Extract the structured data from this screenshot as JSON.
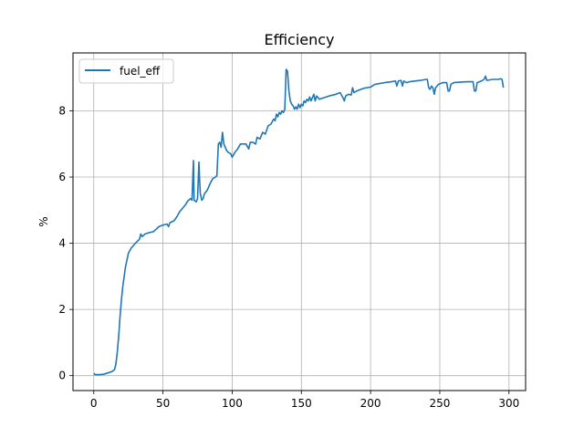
{
  "chart_data": {
    "type": "line",
    "title": "Efficiency",
    "xlabel": "",
    "ylabel": "%",
    "xlim": [
      -15,
      312
    ],
    "ylim": [
      -0.45,
      9.75
    ],
    "xticks": [
      0,
      50,
      100,
      150,
      200,
      250,
      300
    ],
    "yticks": [
      0,
      2,
      4,
      6,
      8
    ],
    "grid": true,
    "legend_position": "upper-left",
    "series": [
      {
        "name": "fuel_eff",
        "color": "#1f77b4",
        "points": [
          [
            0,
            0.07
          ],
          [
            1,
            0.03
          ],
          [
            4,
            0.03
          ],
          [
            7,
            0.04
          ],
          [
            10,
            0.08
          ],
          [
            13,
            0.12
          ],
          [
            15,
            0.18
          ],
          [
            16,
            0.35
          ],
          [
            17,
            0.7
          ],
          [
            18,
            1.2
          ],
          [
            19,
            1.8
          ],
          [
            20,
            2.3
          ],
          [
            21,
            2.7
          ],
          [
            22,
            3.0
          ],
          [
            23,
            3.3
          ],
          [
            24,
            3.5
          ],
          [
            25,
            3.7
          ],
          [
            27,
            3.85
          ],
          [
            30,
            4.0
          ],
          [
            33,
            4.12
          ],
          [
            34,
            4.28
          ],
          [
            35,
            4.2
          ],
          [
            37,
            4.28
          ],
          [
            40,
            4.32
          ],
          [
            43,
            4.35
          ],
          [
            45,
            4.42
          ],
          [
            47,
            4.5
          ],
          [
            50,
            4.55
          ],
          [
            53,
            4.58
          ],
          [
            54,
            4.5
          ],
          [
            55,
            4.62
          ],
          [
            58,
            4.68
          ],
          [
            60,
            4.8
          ],
          [
            62,
            4.95
          ],
          [
            64,
            5.05
          ],
          [
            66,
            5.15
          ],
          [
            68,
            5.28
          ],
          [
            70,
            5.35
          ],
          [
            71,
            5.3
          ],
          [
            72,
            6.5
          ],
          [
            72.5,
            5.3
          ],
          [
            74,
            5.25
          ],
          [
            75,
            5.35
          ],
          [
            76,
            6.45
          ],
          [
            76.5,
            5.9
          ],
          [
            77,
            5.5
          ],
          [
            78,
            5.3
          ],
          [
            79,
            5.35
          ],
          [
            80,
            5.5
          ],
          [
            82,
            5.6
          ],
          [
            84,
            5.8
          ],
          [
            86,
            5.95
          ],
          [
            88,
            6.0
          ],
          [
            89,
            6.05
          ],
          [
            90,
            7.0
          ],
          [
            91,
            7.05
          ],
          [
            92,
            6.9
          ],
          [
            93,
            7.35
          ],
          [
            94,
            7.0
          ],
          [
            96,
            6.8
          ],
          [
            97,
            6.75
          ],
          [
            99,
            6.7
          ],
          [
            100,
            6.6
          ],
          [
            102,
            6.75
          ],
          [
            104,
            6.85
          ],
          [
            106,
            7.0
          ],
          [
            110,
            7.0
          ],
          [
            112,
            6.85
          ],
          [
            113,
            7.05
          ],
          [
            115,
            7.05
          ],
          [
            117,
            7.0
          ],
          [
            118,
            7.2
          ],
          [
            120,
            7.15
          ],
          [
            122,
            7.35
          ],
          [
            124,
            7.3
          ],
          [
            126,
            7.55
          ],
          [
            128,
            7.6
          ],
          [
            130,
            7.75
          ],
          [
            131,
            7.7
          ],
          [
            132,
            7.9
          ],
          [
            133,
            7.82
          ],
          [
            134,
            7.95
          ],
          [
            135,
            7.9
          ],
          [
            136,
            8.0
          ],
          [
            137,
            7.95
          ],
          [
            138,
            8.05
          ],
          [
            139,
            9.25
          ],
          [
            140,
            9.2
          ],
          [
            141,
            8.6
          ],
          [
            142,
            8.3
          ],
          [
            143,
            8.2
          ],
          [
            144,
            8.15
          ],
          [
            145,
            8.05
          ],
          [
            146,
            8.12
          ],
          [
            147,
            8.05
          ],
          [
            148,
            8.2
          ],
          [
            149,
            8.1
          ],
          [
            150,
            8.2
          ],
          [
            151,
            8.15
          ],
          [
            152,
            8.3
          ],
          [
            153,
            8.25
          ],
          [
            154,
            8.35
          ],
          [
            155,
            8.3
          ],
          [
            156,
            8.42
          ],
          [
            157,
            8.3
          ],
          [
            158,
            8.4
          ],
          [
            159,
            8.5
          ],
          [
            160,
            8.3
          ],
          [
            161,
            8.45
          ],
          [
            163,
            8.35
          ],
          [
            165,
            8.38
          ],
          [
            170,
            8.45
          ],
          [
            175,
            8.5
          ],
          [
            178,
            8.55
          ],
          [
            180,
            8.4
          ],
          [
            181,
            8.3
          ],
          [
            182,
            8.45
          ],
          [
            184,
            8.5
          ],
          [
            186,
            8.48
          ],
          [
            187,
            8.7
          ],
          [
            188,
            8.55
          ],
          [
            190,
            8.6
          ],
          [
            195,
            8.68
          ],
          [
            200,
            8.72
          ],
          [
            203,
            8.8
          ],
          [
            206,
            8.82
          ],
          [
            210,
            8.85
          ],
          [
            215,
            8.88
          ],
          [
            218,
            8.9
          ],
          [
            219,
            8.75
          ],
          [
            220,
            8.9
          ],
          [
            222,
            8.92
          ],
          [
            223,
            8.75
          ],
          [
            224,
            8.9
          ],
          [
            226,
            8.85
          ],
          [
            228,
            8.88
          ],
          [
            232,
            8.9
          ],
          [
            236,
            8.92
          ],
          [
            240,
            8.95
          ],
          [
            241,
            8.95
          ],
          [
            242,
            8.7
          ],
          [
            243,
            8.65
          ],
          [
            244,
            8.75
          ],
          [
            245,
            8.7
          ],
          [
            246,
            8.5
          ],
          [
            247,
            8.7
          ],
          [
            249,
            8.8
          ],
          [
            252,
            8.85
          ],
          [
            255,
            8.85
          ],
          [
            256,
            8.6
          ],
          [
            257,
            8.6
          ],
          [
            258,
            8.8
          ],
          [
            260,
            8.85
          ],
          [
            265,
            8.87
          ],
          [
            270,
            8.88
          ],
          [
            274,
            8.88
          ],
          [
            275,
            8.6
          ],
          [
            276,
            8.6
          ],
          [
            277,
            8.85
          ],
          [
            280,
            8.9
          ],
          [
            282,
            8.95
          ],
          [
            283,
            9.05
          ],
          [
            284,
            8.92
          ],
          [
            288,
            8.95
          ],
          [
            292,
            8.95
          ],
          [
            294,
            8.97
          ],
          [
            295,
            8.95
          ],
          [
            296,
            8.7
          ]
        ]
      }
    ]
  }
}
